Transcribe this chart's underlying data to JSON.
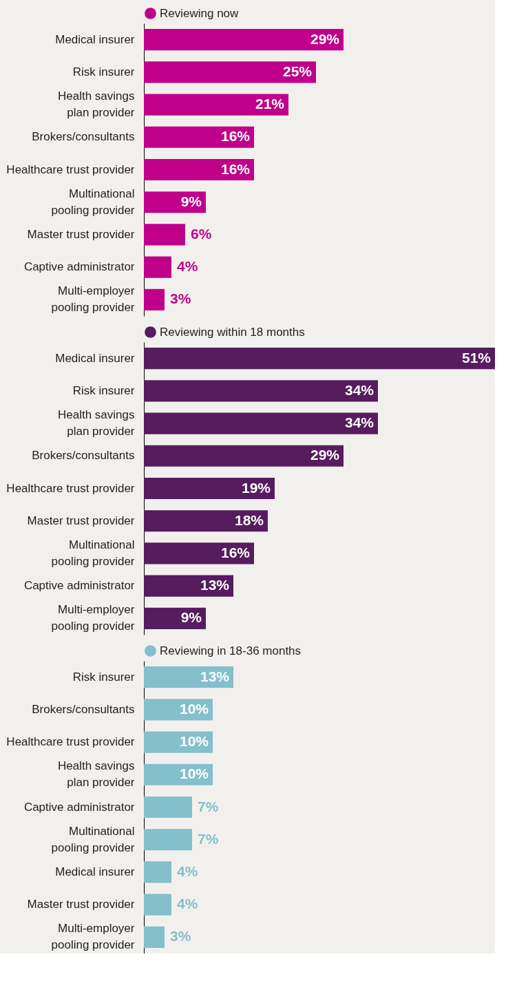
{
  "chart_data": [
    {
      "type": "bar",
      "orientation": "horizontal",
      "legend": "top",
      "categories": [
        "Medical insurer",
        "Risk insurer",
        "Health savings\nplan provider",
        "Brokers/consultants",
        "Healthcare trust provider",
        "Multinational\npooling provider",
        "Master trust provider",
        "Captive administrator",
        "Multi-employer\npooling provider"
      ],
      "series": [
        {
          "name": "Reviewing now",
          "color": "#c0008a",
          "values": [
            29,
            25,
            21,
            16,
            16,
            9,
            6,
            4,
            3
          ],
          "value_labels": [
            "29%",
            "25%",
            "21%",
            "16%",
            "16%",
            "9%",
            "6%",
            "4%",
            "3%"
          ]
        }
      ]
    },
    {
      "type": "bar",
      "orientation": "horizontal",
      "legend": "top",
      "categories": [
        "Medical insurer",
        "Risk insurer",
        "Health savings\nplan provider",
        "Brokers/consultants",
        "Healthcare trust provider",
        "Master trust provider",
        "Multinational\npooling provider",
        "Captive administrator",
        "Multi-employer\npooling provider"
      ],
      "series": [
        {
          "name": "Reviewing within 18 months",
          "color": "#561c5e",
          "values": [
            51,
            34,
            34,
            29,
            19,
            18,
            16,
            13,
            9
          ],
          "value_labels": [
            "51%",
            "34%",
            "34%",
            "29%",
            "19%",
            "18%",
            "16%",
            "13%",
            "9%"
          ]
        }
      ]
    },
    {
      "type": "bar",
      "orientation": "horizontal",
      "legend": "top",
      "categories": [
        "Risk insurer",
        "Brokers/consultants",
        "Healthcare trust provider",
        "Health savings\nplan provider",
        "Captive administrator",
        "Multinational\npooling provider",
        "Medical insurer",
        "Master trust provider",
        "Multi-employer\npooling provider"
      ],
      "series": [
        {
          "name": "Reviewing in 18-36 months",
          "color": "#84bfcc",
          "values": [
            13,
            10,
            10,
            10,
            7,
            7,
            4,
            4,
            3
          ],
          "value_labels": [
            "13%",
            "10%",
            "10%",
            "10%",
            "7%",
            "7%",
            "4%",
            "4%",
            "3%"
          ]
        }
      ]
    }
  ]
}
